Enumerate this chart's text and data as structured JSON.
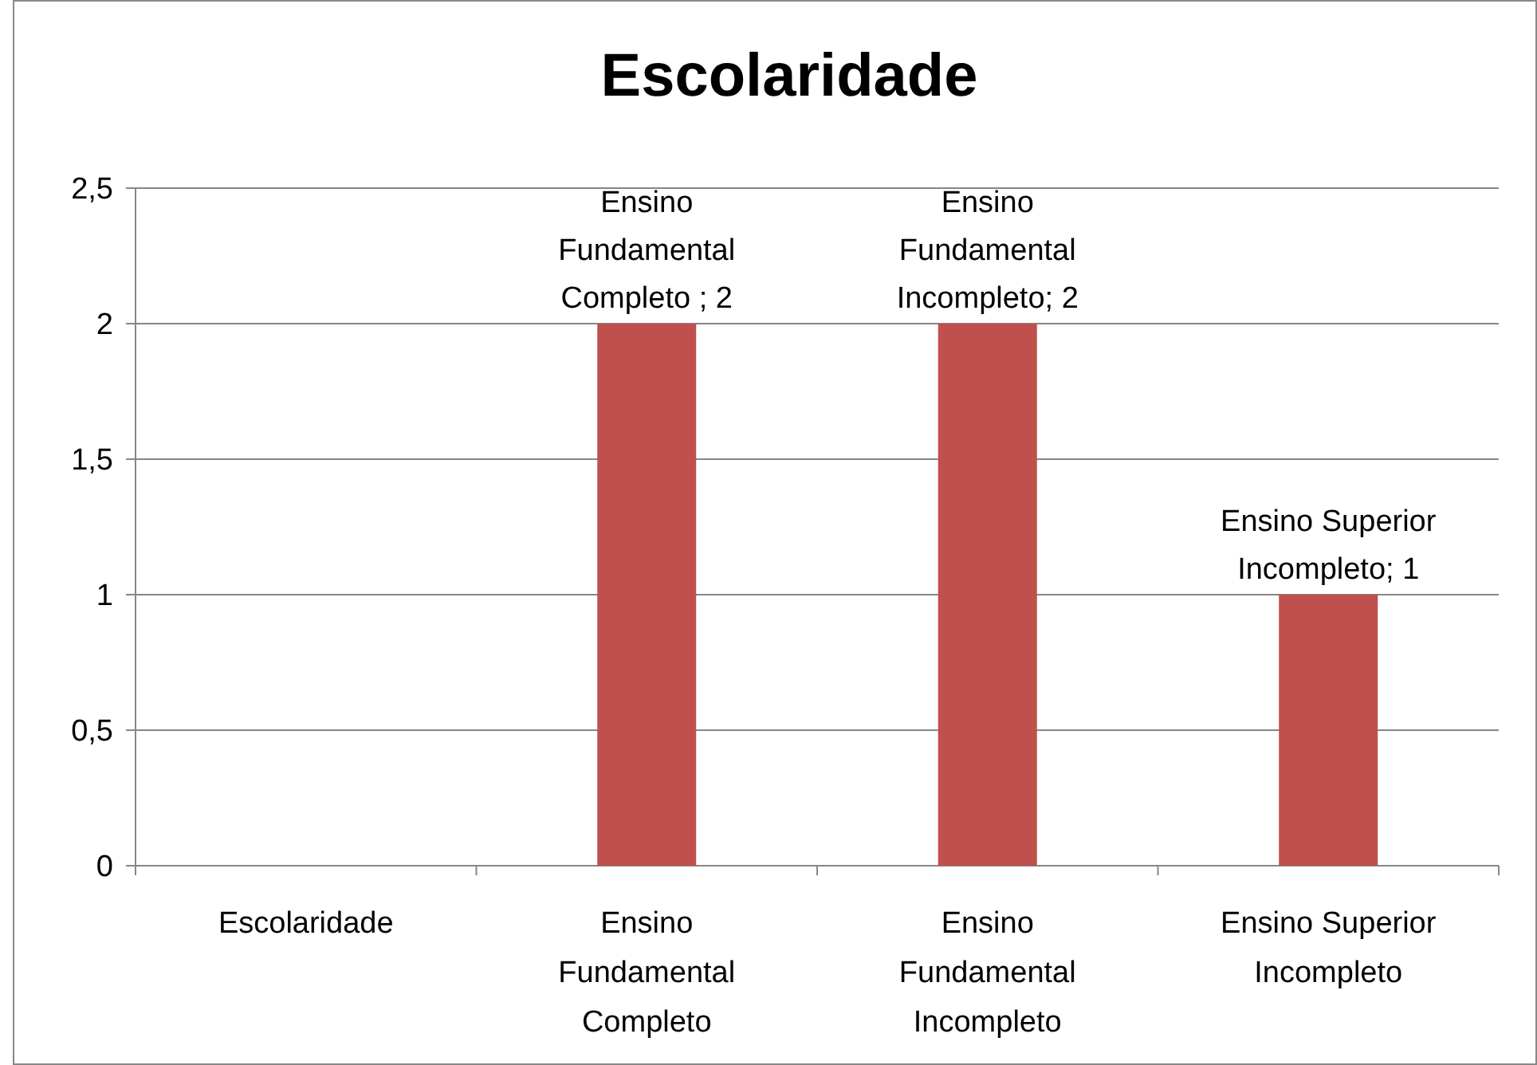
{
  "chart_data": {
    "type": "bar",
    "title": "Escolaridade",
    "categories": [
      "Escolaridade",
      "Ensino Fundamental Completo",
      "Ensino Fundamental Incompleto",
      "Ensino Superior Incompleto"
    ],
    "values": [
      null,
      2,
      2,
      1
    ],
    "value_labels": [
      null,
      "Ensino Fundamental Completo ; 2",
      "Ensino Fundamental Incompleto; 2",
      "Ensino Superior Incompleto; 1"
    ],
    "color": "#c0504d",
    "ylim": [
      0,
      2.5
    ],
    "yticks": [
      0,
      {
        "value": 0.5,
        "label": "0,5"
      },
      1,
      {
        "value": 1.5,
        "label": "1,5"
      },
      2,
      {
        "value": 2.5,
        "label": "2,5"
      }
    ],
    "grid": "y"
  }
}
